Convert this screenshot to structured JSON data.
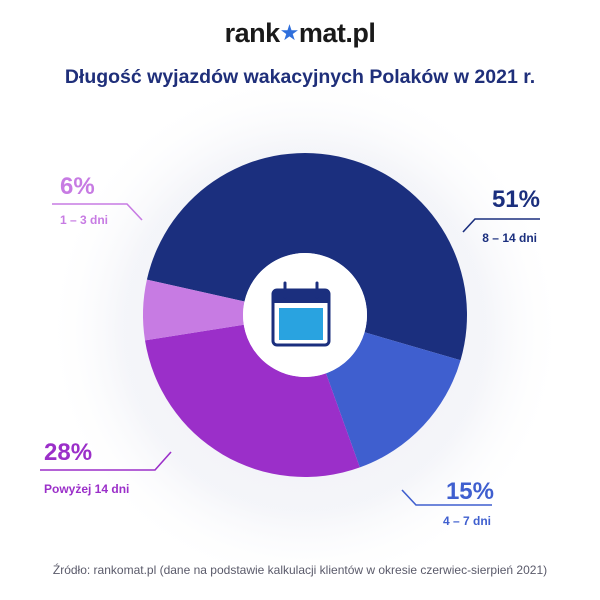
{
  "brand": {
    "prefix": "rank",
    "star_glyph": "★",
    "suffix": "mat.pl"
  },
  "title": "Długość wyjazdów wakacyjnych Polaków w 2021 r.",
  "source": "Źródło: rankomat.pl (dane na podstawie kalkulacji klientów w okresie czerwiec-sierpień 2021)",
  "center_icon": "calendar-icon",
  "chart_data": {
    "type": "pie",
    "donut": true,
    "title": "Długość wyjazdów wakacyjnych Polaków w 2021 r.",
    "categories": [
      "8 – 14 dni",
      "4 – 7 dni",
      "Powyżej 14 dni",
      "1 – 3 dni"
    ],
    "values": [
      51,
      15,
      28,
      6
    ],
    "value_labels": [
      "51%",
      "15%",
      "28%",
      "6%"
    ],
    "colors": [
      "#1b2f7e",
      "#3f5fcf",
      "#9b2fc9",
      "#c77be3"
    ],
    "label_colors": [
      "#1b2f7e",
      "#3f5fcf",
      "#9b2fc9",
      "#c77be3"
    ]
  }
}
